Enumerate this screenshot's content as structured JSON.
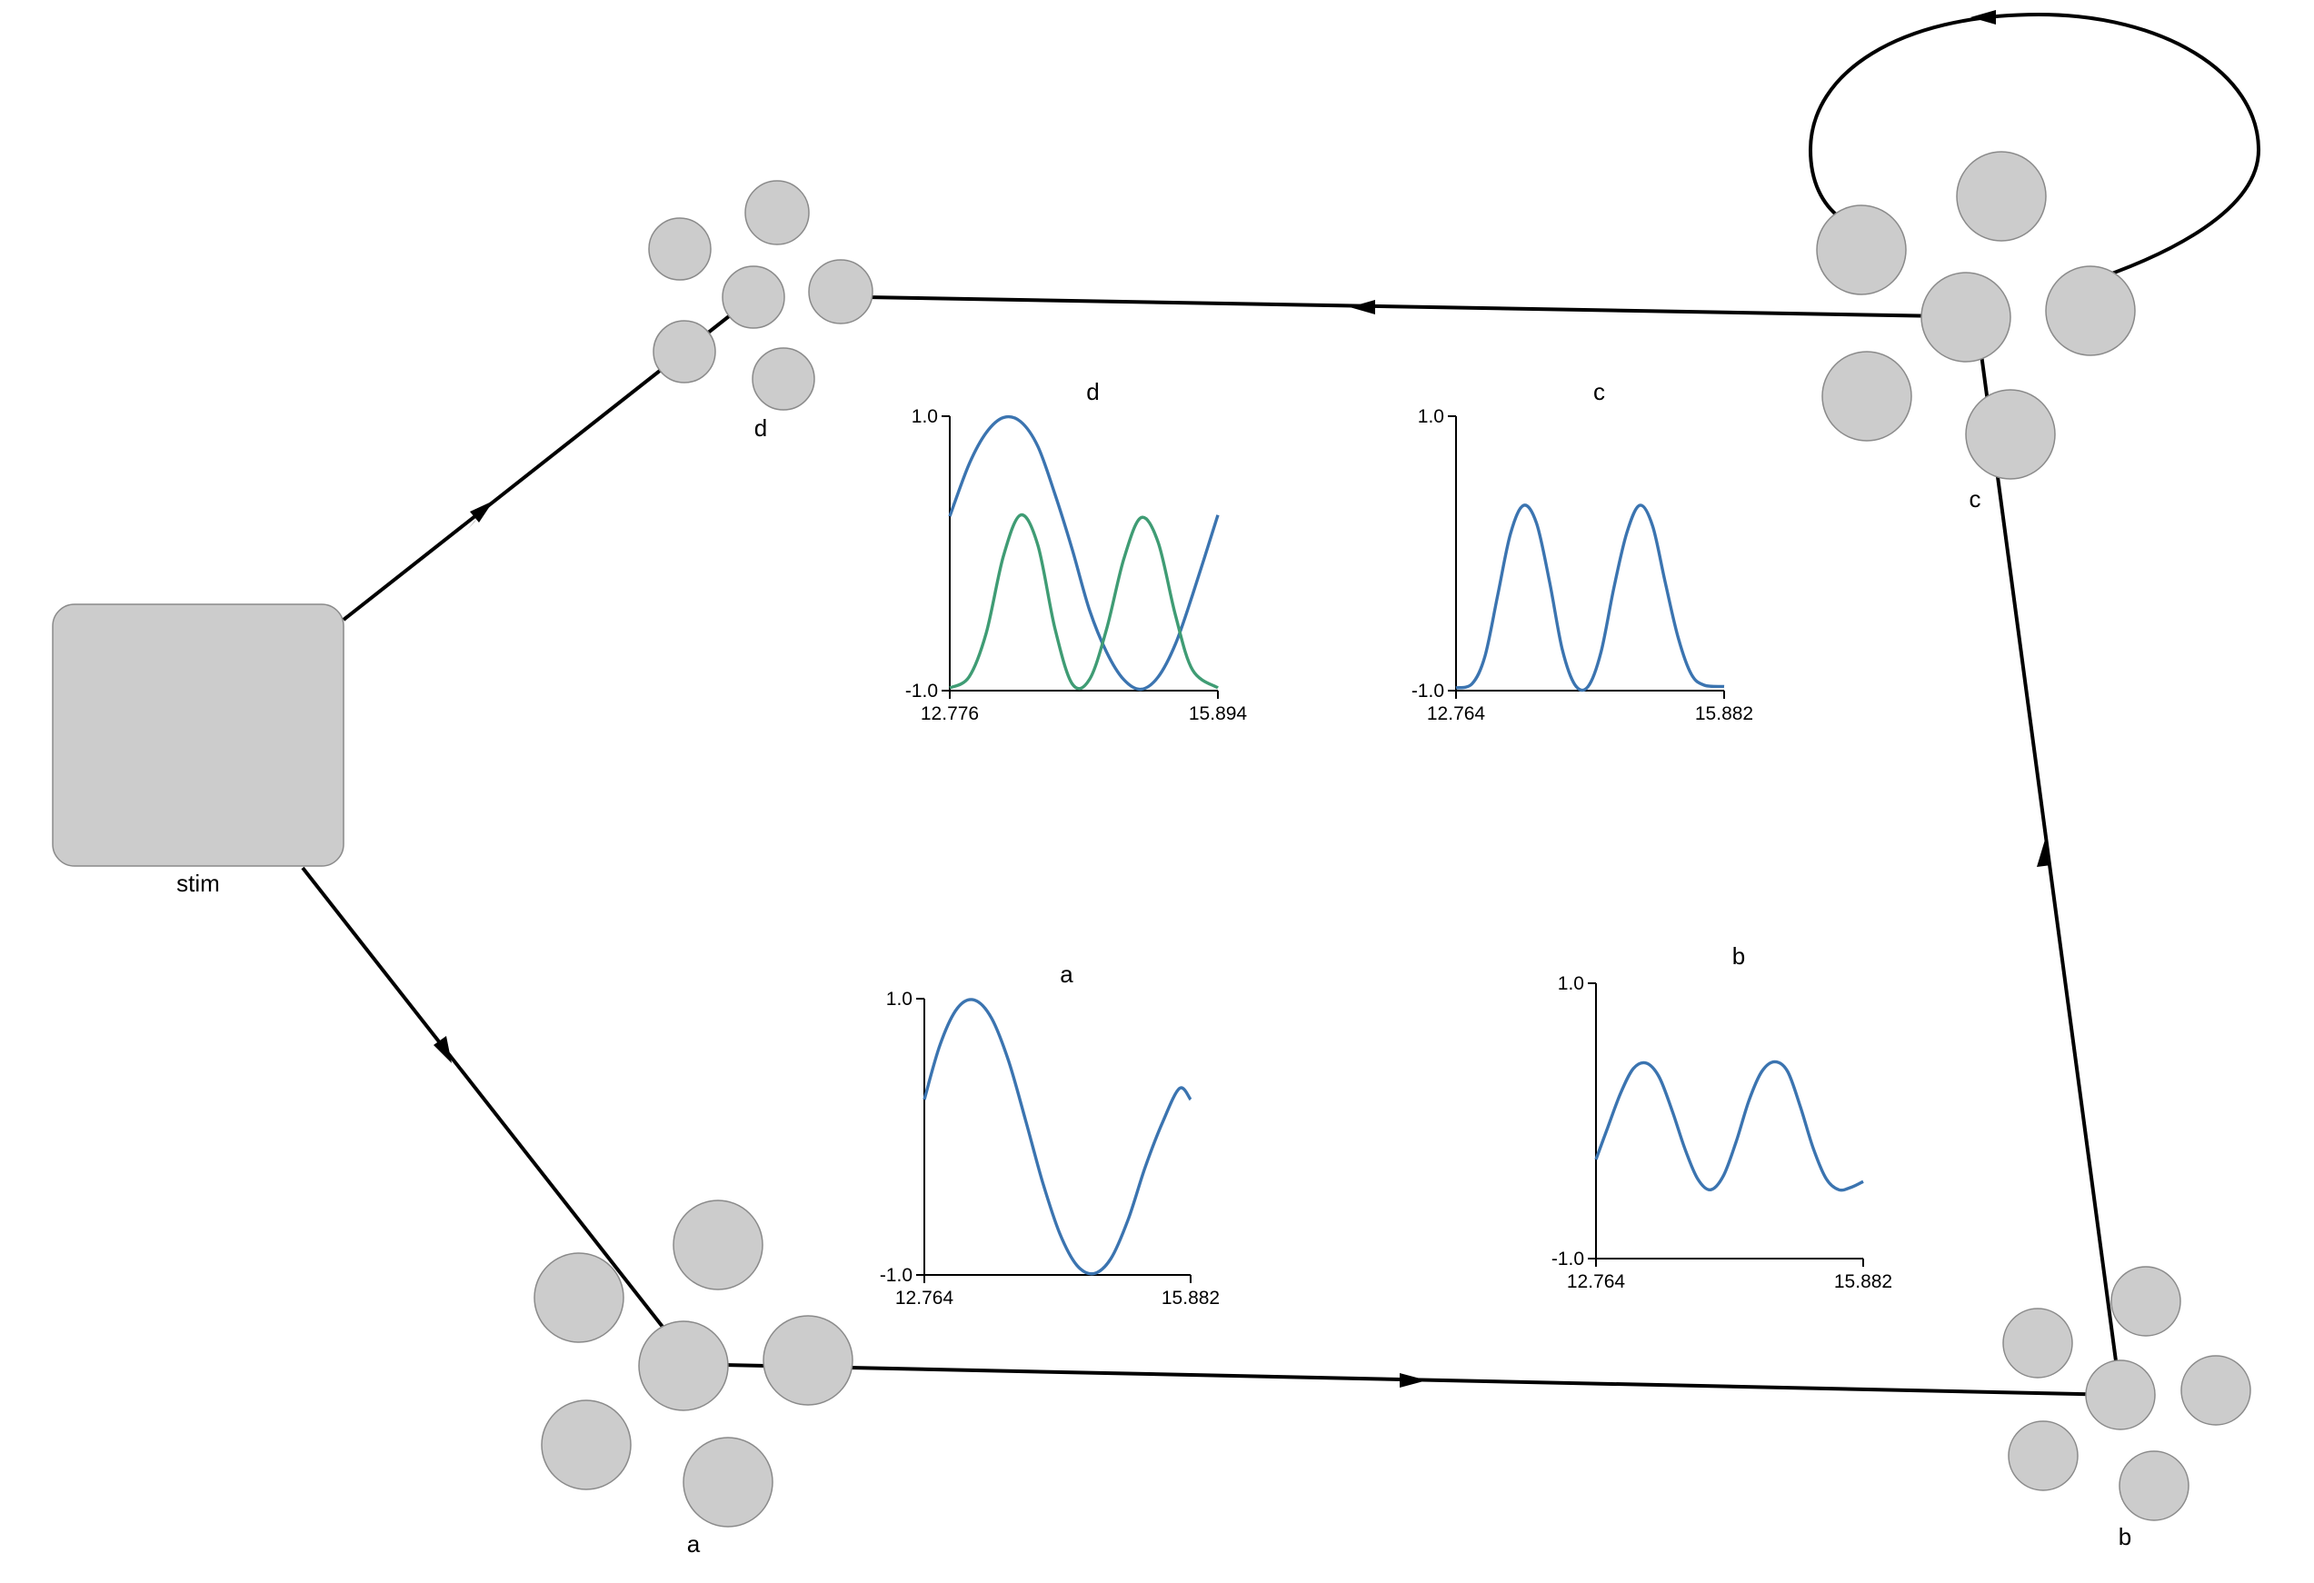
{
  "nodes": {
    "stim": {
      "label": "stim"
    },
    "a": {
      "label": "a"
    },
    "b": {
      "label": "b"
    },
    "c": {
      "label": "c"
    },
    "d": {
      "label": "d"
    }
  },
  "edges": [
    {
      "from": "stim",
      "to": "d"
    },
    {
      "from": "stim",
      "to": "a"
    },
    {
      "from": "a",
      "to": "b"
    },
    {
      "from": "b",
      "to": "c"
    },
    {
      "from": "c",
      "to": "d"
    },
    {
      "from": "c",
      "to": "c"
    }
  ],
  "colors": {
    "node_fill": "#cccccc",
    "trace_blue": "#3b74b0",
    "trace_green": "#3f9c74"
  },
  "chart_data": [
    {
      "id": "d",
      "type": "line",
      "title": "d",
      "xlim": [
        12.776,
        15.894
      ],
      "ylim": [
        -1.0,
        1.0
      ],
      "x_tick_labels": [
        "12.776",
        "15.894"
      ],
      "y_tick_labels": [
        "1.0",
        "-1.0"
      ],
      "series": [
        {
          "color": "#3b74b0",
          "x": [
            12.776,
            13.0,
            13.2,
            13.4,
            13.6,
            13.8,
            14.0,
            14.2,
            14.4,
            14.6,
            14.8,
            15.0,
            15.2,
            15.4,
            15.6,
            15.894
          ],
          "y": [
            0.27,
            0.65,
            0.88,
            0.99,
            0.96,
            0.78,
            0.43,
            0.03,
            -0.41,
            -0.72,
            -0.92,
            -0.99,
            -0.9,
            -0.66,
            -0.3,
            0.28
          ]
        },
        {
          "color": "#3f9c74",
          "x": [
            12.776,
            13.0,
            13.2,
            13.4,
            13.6,
            13.8,
            14.0,
            14.2,
            14.4,
            14.6,
            14.8,
            15.0,
            15.2,
            15.4,
            15.6,
            15.894
          ],
          "y": [
            -0.98,
            -0.9,
            -0.58,
            -0.02,
            0.28,
            0.06,
            -0.55,
            -0.95,
            -0.92,
            -0.55,
            -0.04,
            0.26,
            0.08,
            -0.45,
            -0.85,
            -0.98
          ]
        }
      ]
    },
    {
      "id": "c",
      "type": "line",
      "title": "c",
      "xlim": [
        12.764,
        15.882
      ],
      "ylim": [
        -1.0,
        1.0
      ],
      "x_tick_labels": [
        "12.764",
        "15.882"
      ],
      "y_tick_labels": [
        "1.0",
        "-1.0"
      ],
      "series": [
        {
          "color": "#3b74b0",
          "x": [
            12.764,
            12.95,
            13.1,
            13.25,
            13.4,
            13.55,
            13.7,
            13.85,
            14.0,
            14.15,
            14.3,
            14.45,
            14.6,
            14.75,
            14.9,
            15.05,
            15.2,
            15.35,
            15.5,
            15.65,
            15.882
          ],
          "y": [
            -0.98,
            -0.95,
            -0.75,
            -0.3,
            0.15,
            0.35,
            0.22,
            -0.2,
            -0.7,
            -0.96,
            -0.97,
            -0.72,
            -0.25,
            0.15,
            0.35,
            0.2,
            -0.22,
            -0.62,
            -0.88,
            -0.96,
            -0.97
          ]
        }
      ]
    },
    {
      "id": "a",
      "type": "line",
      "title": "a",
      "xlim": [
        12.764,
        15.882
      ],
      "ylim": [
        -1.0,
        1.0
      ],
      "x_tick_labels": [
        "12.764",
        "15.882"
      ],
      "y_tick_labels": [
        "1.0",
        "-1.0"
      ],
      "series": [
        {
          "color": "#3b74b0",
          "x": [
            12.764,
            12.95,
            13.15,
            13.35,
            13.55,
            13.75,
            13.95,
            14.15,
            14.35,
            14.55,
            14.75,
            14.95,
            15.15,
            15.35,
            15.55,
            15.75,
            15.882
          ],
          "y": [
            0.27,
            0.67,
            0.93,
            0.99,
            0.86,
            0.55,
            0.12,
            -0.33,
            -0.7,
            -0.93,
            -0.99,
            -0.88,
            -0.6,
            -0.22,
            0.1,
            0.35,
            0.27
          ]
        }
      ]
    },
    {
      "id": "b",
      "type": "line",
      "title": "b",
      "xlim": [
        12.764,
        15.882
      ],
      "ylim": [
        -1.0,
        1.0
      ],
      "x_tick_labels": [
        "12.764",
        "15.882"
      ],
      "y_tick_labels": [
        "1.0",
        "-1.0"
      ],
      "series": [
        {
          "color": "#3b74b0",
          "x": [
            12.764,
            12.9,
            13.05,
            13.2,
            13.35,
            13.5,
            13.65,
            13.8,
            13.95,
            14.1,
            14.25,
            14.4,
            14.55,
            14.7,
            14.85,
            15.0,
            15.15,
            15.3,
            15.45,
            15.6,
            15.75,
            15.882
          ],
          "y": [
            -0.28,
            -0.05,
            0.2,
            0.38,
            0.42,
            0.32,
            0.08,
            -0.2,
            -0.42,
            -0.5,
            -0.4,
            -0.15,
            0.15,
            0.36,
            0.43,
            0.36,
            0.1,
            -0.2,
            -0.42,
            -0.5,
            -0.48,
            -0.44
          ]
        }
      ]
    }
  ]
}
